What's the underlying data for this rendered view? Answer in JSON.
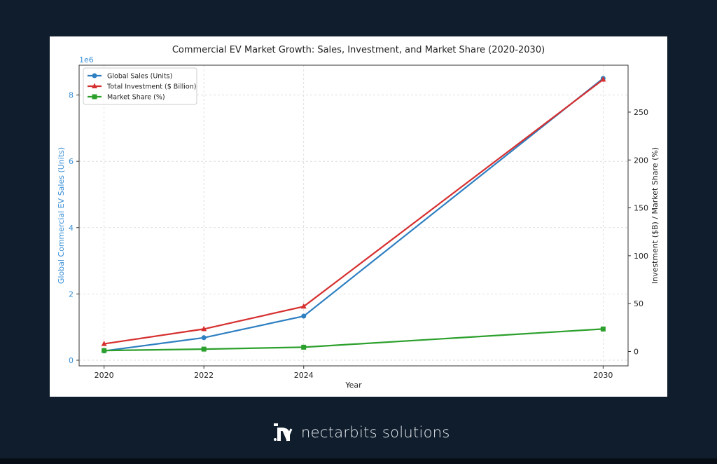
{
  "chart_data": {
    "type": "line",
    "title": "Commercial EV Market Growth: Sales, Investment, and Market Share (2020-2030)",
    "xlabel": "Year",
    "ylabel_left": "Global Commercial EV Sales (Units)",
    "ylabel_right": "Investment ($B) / Market Share (%)",
    "left_offset_label": "1e6",
    "x": [
      2020,
      2022,
      2024,
      2030
    ],
    "x_ticks": [
      "2020",
      "2022",
      "2024",
      "2030"
    ],
    "left_ticks": [
      "0",
      "2",
      "4",
      "6",
      "8"
    ],
    "right_ticks": [
      "0",
      "50",
      "100",
      "150",
      "200",
      "250"
    ],
    "left_ylim": [
      -0.17,
      8.9
    ],
    "right_ylim": [
      -15,
      299
    ],
    "xlim": [
      2019.5,
      2030.5
    ],
    "grid": true,
    "legend_position": "top-left",
    "series": [
      {
        "name": "Global Sales (Units)",
        "axis": "left",
        "color": "#2e7fc1",
        "marker": "circle",
        "values": [
          0.28,
          0.68,
          1.33,
          8.5
        ]
      },
      {
        "name": "Total Investment ($ Billion)",
        "axis": "right",
        "color": "#d62f2f",
        "marker": "triangle",
        "values": [
          8,
          23.5,
          47,
          284
        ]
      },
      {
        "name": "Market Share (%)",
        "axis": "right",
        "color": "#2ca02c",
        "marker": "square",
        "values": [
          1,
          2.5,
          4.5,
          23.5
        ]
      }
    ],
    "left_axis_color": "#3a8fd6"
  },
  "brand": {
    "name": "nectarbits solutions"
  }
}
